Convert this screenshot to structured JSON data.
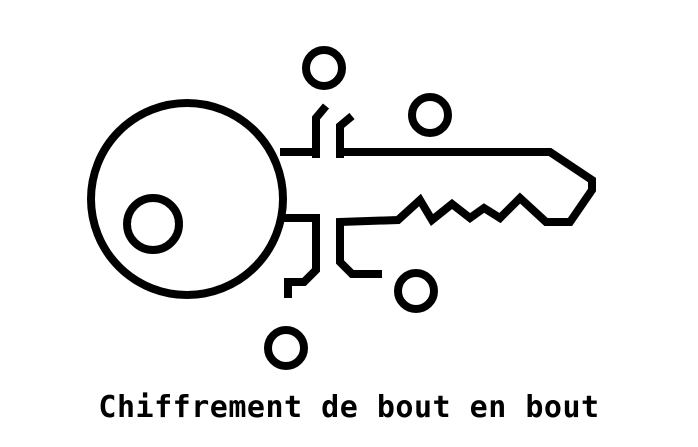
{
  "illustration": {
    "icon": "key-circuit-icon",
    "caption": "Chiffrement de bout en bout",
    "colors": {
      "stroke": "#000000",
      "background": "#ffffff"
    }
  }
}
